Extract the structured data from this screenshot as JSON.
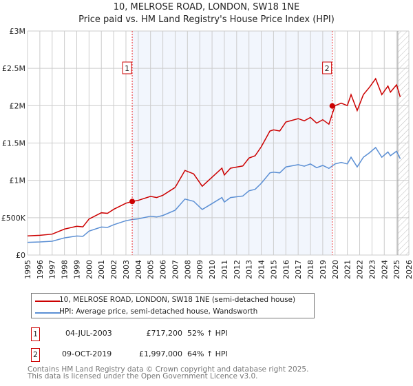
{
  "chart_data": {
    "type": "line",
    "title": "10, MELROSE ROAD, LONDON, SW18 1NE",
    "subtitle": "Price paid vs. HM Land Registry's House Price Index (HPI)",
    "xlim": [
      1995,
      2026
    ],
    "ylim": [
      0,
      3000000
    ],
    "y_ticks": [
      {
        "v": 0,
        "label": "£0"
      },
      {
        "v": 500000,
        "label": "£500K"
      },
      {
        "v": 1000000,
        "label": "£1M"
      },
      {
        "v": 1500000,
        "label": "£1.5M"
      },
      {
        "v": 2000000,
        "label": "£2M"
      },
      {
        "v": 2500000,
        "label": "£2.5M"
      },
      {
        "v": 3000000,
        "label": "£3M"
      }
    ],
    "x_ticks": [
      "1995",
      "1996",
      "1997",
      "1998",
      "1999",
      "2000",
      "2001",
      "2002",
      "2003",
      "2004",
      "2005",
      "2006",
      "2007",
      "2008",
      "2009",
      "2010",
      "2011",
      "2012",
      "2013",
      "2014",
      "2015",
      "2016",
      "2017",
      "2018",
      "2019",
      "2020",
      "2021",
      "2022",
      "2023",
      "2024",
      "2025",
      "2026"
    ],
    "series": [
      {
        "name": "10, MELROSE ROAD, LONDON, SW18 1NE (semi-detached house)",
        "color": "#cc0000"
      },
      {
        "name": "HPI: Average price, semi-detached house, Wandsworth",
        "color": "#5b8fd4",
        "x": [
          1995,
          1996,
          1997,
          1998,
          1999,
          1999.5,
          2000,
          2001,
          2001.5,
          2002,
          2003,
          2003.5,
          2004,
          2005,
          2005.5,
          2006,
          2007,
          2007.8,
          2008.5,
          2009.2,
          2010,
          2010.8,
          2011,
          2011.5,
          2012,
          2012.5,
          2013,
          2013.5,
          2014,
          2014.7,
          2015,
          2015.5,
          2016,
          2017,
          2017.5,
          2018,
          2018.5,
          2019,
          2019.5,
          2020,
          2020.5,
          2021,
          2021.3,
          2021.8,
          2022.3,
          2022.8,
          2023.3,
          2023.8,
          2024.3,
          2024.5,
          2025,
          2025.3
        ],
        "y": [
          170000,
          175000,
          185000,
          230000,
          255000,
          250000,
          320000,
          375000,
          370000,
          405000,
          460000,
          475000,
          485000,
          520000,
          510000,
          530000,
          600000,
          750000,
          720000,
          610000,
          690000,
          770000,
          710000,
          770000,
          780000,
          790000,
          860000,
          880000,
          960000,
          1100000,
          1110000,
          1100000,
          1180000,
          1210000,
          1190000,
          1220000,
          1170000,
          1200000,
          1160000,
          1220000,
          1240000,
          1220000,
          1310000,
          1180000,
          1310000,
          1370000,
          1440000,
          1310000,
          1380000,
          1330000,
          1390000,
          1290000
        ]
      }
    ],
    "red_scale": {
      "before_sale2": 1.51,
      "after_sale2": 1.64
    },
    "sales": [
      {
        "id": "1",
        "date": "04-JUL-2003",
        "x": 2003.51,
        "price": "£717,200",
        "value": 717200,
        "hpi": "52% ↑ HPI"
      },
      {
        "id": "2",
        "date": "09-OCT-2019",
        "x": 2019.77,
        "price": "£1,997,000",
        "value": 1997000,
        "hpi": "64% ↑ HPI"
      }
    ],
    "forecast_start": 2025.1
  },
  "footer": {
    "line1": "Contains HM Land Registry data © Crown copyright and database right 2025.",
    "line2": "This data is licensed under the Open Government Licence v3.0."
  }
}
